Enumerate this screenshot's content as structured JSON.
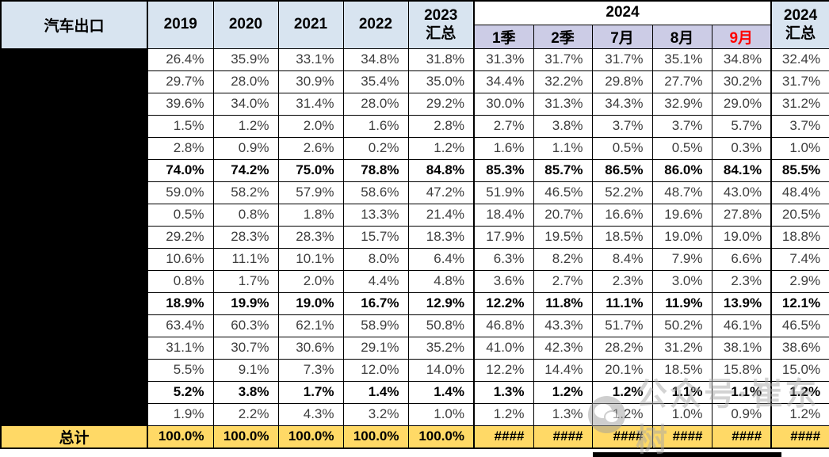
{
  "header": {
    "title": "汽车出口",
    "years": [
      "2019",
      "2020",
      "2021",
      "2022"
    ],
    "col_2023": {
      "line1": "2023",
      "line2": "汇总"
    },
    "group_2024": "2024",
    "months_2024": [
      "1季",
      "2季",
      "7月",
      "8月",
      "9月"
    ],
    "col_2024_total": {
      "line1": "2024",
      "line2": "汇总"
    }
  },
  "body": {
    "rows": [
      {
        "bold": false,
        "values": [
          "26.4%",
          "35.9%",
          "33.1%",
          "34.8%",
          "31.8%",
          "31.3%",
          "31.7%",
          "31.7%",
          "35.1%",
          "34.8%",
          "32.4%"
        ]
      },
      {
        "bold": false,
        "values": [
          "29.7%",
          "28.0%",
          "30.9%",
          "35.4%",
          "35.0%",
          "34.4%",
          "32.2%",
          "29.8%",
          "27.7%",
          "30.2%",
          "31.7%"
        ]
      },
      {
        "bold": false,
        "values": [
          "39.6%",
          "34.0%",
          "31.4%",
          "28.0%",
          "29.2%",
          "30.0%",
          "31.3%",
          "34.3%",
          "32.9%",
          "29.0%",
          "31.2%"
        ]
      },
      {
        "bold": false,
        "values": [
          "1.5%",
          "1.2%",
          "2.0%",
          "1.6%",
          "2.8%",
          "2.7%",
          "3.8%",
          "3.7%",
          "3.7%",
          "5.7%",
          "3.7%"
        ]
      },
      {
        "bold": false,
        "values": [
          "2.8%",
          "0.9%",
          "2.6%",
          "0.2%",
          "1.2%",
          "1.6%",
          "1.1%",
          "0.5%",
          "0.5%",
          "0.3%",
          "1.0%"
        ]
      },
      {
        "bold": true,
        "values": [
          "74.0%",
          "74.2%",
          "75.0%",
          "78.8%",
          "84.8%",
          "85.3%",
          "85.7%",
          "86.5%",
          "86.0%",
          "84.1%",
          "85.5%"
        ]
      },
      {
        "bold": false,
        "values": [
          "59.0%",
          "58.2%",
          "57.9%",
          "58.6%",
          "47.2%",
          "51.9%",
          "46.5%",
          "52.2%",
          "48.7%",
          "43.0%",
          "48.4%"
        ]
      },
      {
        "bold": false,
        "values": [
          "0.5%",
          "0.8%",
          "1.8%",
          "13.3%",
          "21.4%",
          "18.4%",
          "20.7%",
          "16.6%",
          "19.6%",
          "27.8%",
          "20.5%"
        ]
      },
      {
        "bold": false,
        "values": [
          "29.2%",
          "28.3%",
          "28.3%",
          "15.7%",
          "18.3%",
          "17.9%",
          "19.5%",
          "18.5%",
          "19.0%",
          "19.0%",
          "18.8%"
        ]
      },
      {
        "bold": false,
        "values": [
          "10.6%",
          "11.1%",
          "10.1%",
          "8.0%",
          "6.4%",
          "6.3%",
          "8.2%",
          "8.4%",
          "7.9%",
          "6.6%",
          "7.4%"
        ]
      },
      {
        "bold": false,
        "values": [
          "0.8%",
          "1.7%",
          "2.0%",
          "4.4%",
          "4.8%",
          "3.6%",
          "2.7%",
          "2.3%",
          "3.0%",
          "2.3%",
          "2.9%"
        ]
      },
      {
        "bold": true,
        "values": [
          "18.9%",
          "19.9%",
          "19.0%",
          "16.7%",
          "12.9%",
          "12.2%",
          "11.8%",
          "11.1%",
          "11.9%",
          "13.9%",
          "12.1%"
        ]
      },
      {
        "bold": false,
        "values": [
          "63.4%",
          "60.3%",
          "62.1%",
          "58.9%",
          "50.8%",
          "46.8%",
          "43.3%",
          "51.7%",
          "50.2%",
          "46.1%",
          "46.5%"
        ]
      },
      {
        "bold": false,
        "values": [
          "31.1%",
          "30.7%",
          "30.6%",
          "29.1%",
          "35.2%",
          "41.0%",
          "42.3%",
          "28.2%",
          "31.2%",
          "38.1%",
          "38.6%"
        ]
      },
      {
        "bold": false,
        "values": [
          "5.5%",
          "9.1%",
          "7.3%",
          "12.0%",
          "14.0%",
          "12.2%",
          "14.4%",
          "20.1%",
          "18.5%",
          "15.8%",
          "15.0%"
        ]
      },
      {
        "bold": true,
        "values": [
          "5.2%",
          "3.8%",
          "1.7%",
          "1.4%",
          "1.4%",
          "1.3%",
          "1.2%",
          "1.2%",
          "1.1%",
          "1.1%",
          "1.2%"
        ]
      },
      {
        "bold": false,
        "values": [
          "1.9%",
          "2.2%",
          "4.3%",
          "3.2%",
          "1.0%",
          "1.2%",
          "1.3%",
          "1.2%",
          "1.0%",
          "0.9%",
          "1.2%"
        ]
      }
    ],
    "total": {
      "label": "总计",
      "values": [
        "100.0%",
        "100.0%",
        "100.0%",
        "100.0%",
        "100.0%",
        "####",
        "####",
        "####",
        "####",
        "####",
        "####"
      ]
    }
  },
  "watermark": {
    "text": "公众号·崔东树",
    "logo": "wechat-icon"
  },
  "colors": {
    "header_blue": "#d8e4f0",
    "subheader_lavender": "#cccce6",
    "total_yellow": "#ffd966",
    "month9_red": "#ff0000",
    "redaction_black": "#000000"
  }
}
